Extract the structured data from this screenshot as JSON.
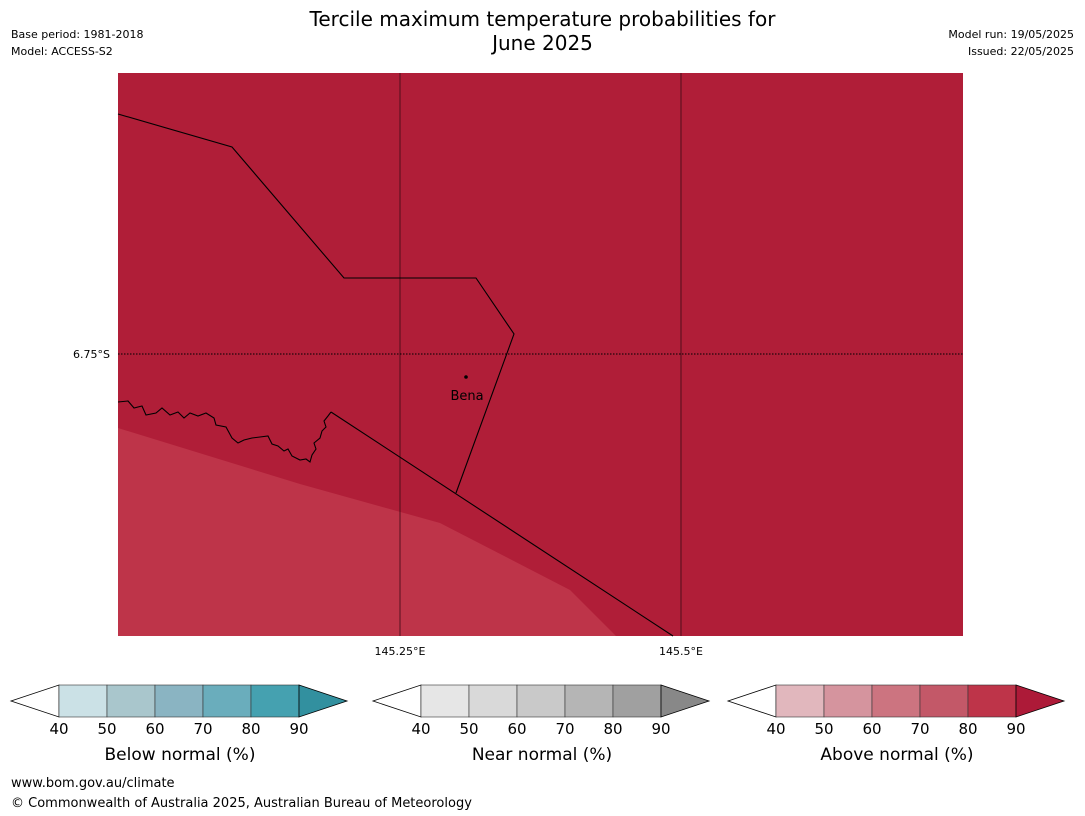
{
  "title_line1": "Tercile maximum temperature probabilities for",
  "title_line2": "June 2025",
  "meta_left": [
    "Base period: 1981-2018",
    "Model: ACCESS-S2"
  ],
  "meta_right": [
    "Model run: 19/05/2025",
    "Issued: 22/05/2025"
  ],
  "map": {
    "lat_label": "6.75°S",
    "lon_labels": [
      "145.25°E",
      "145.5°E"
    ],
    "place_label": "Bena",
    "dominant_category": "Above normal",
    "dominant_fill": "#b01e38",
    "secondary_fill": "#be3449"
  },
  "colorbars": [
    {
      "id": "below",
      "label": "Below normal (%)",
      "ticks": [
        "40",
        "50",
        "60",
        "70",
        "80",
        "90"
      ],
      "colors": [
        "#cbe1e6",
        "#a9c6cc",
        "#8ab4c2",
        "#6aadbc",
        "#45a1b0",
        "#32909f"
      ]
    },
    {
      "id": "near",
      "label": "Near normal (%)",
      "ticks": [
        "40",
        "50",
        "60",
        "70",
        "80",
        "90"
      ],
      "colors": [
        "#e6e6e6",
        "#d9d9d9",
        "#c9c9c9",
        "#b5b5b5",
        "#a0a0a0",
        "#888888"
      ]
    },
    {
      "id": "above",
      "label": "Above normal (%)",
      "ticks": [
        "40",
        "50",
        "60",
        "70",
        "80",
        "90"
      ],
      "colors": [
        "#e1b7bd",
        "#d5949e",
        "#cc7480",
        "#c35868",
        "#be3449",
        "#ad1a38"
      ]
    }
  ],
  "footer": {
    "url": "www.bom.gov.au/climate",
    "copyright": "© Commonwealth of Australia 2025, Australian Bureau of Meteorology"
  }
}
